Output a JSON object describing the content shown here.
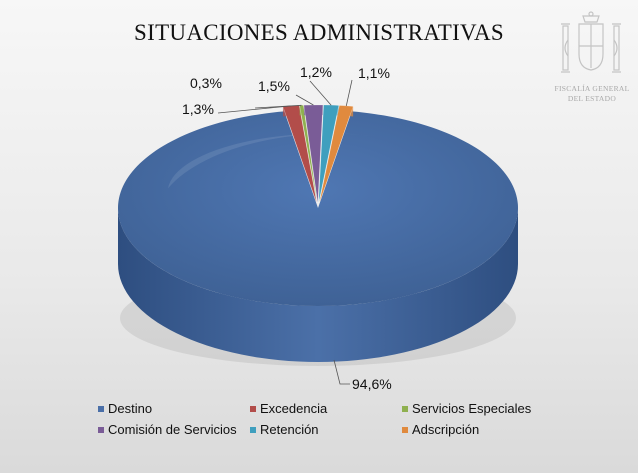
{
  "chart_data": {
    "type": "pie",
    "title": "SITUACIONES ADMINISTRATIVAS",
    "slices": [
      {
        "name": "Destino",
        "value": 94.6,
        "label": "94,6%",
        "color": "#4a6fa8"
      },
      {
        "name": "Excedencia",
        "value": 1.3,
        "label": "1,3%",
        "color": "#b24d4a"
      },
      {
        "name": "Servicios Especiales",
        "value": 0.3,
        "label": "0,3%",
        "color": "#8fb04f"
      },
      {
        "name": "Comisión de Servicios",
        "value": 1.5,
        "label": "1,5%",
        "color": "#7a5c97"
      },
      {
        "name": "Retención",
        "value": 1.2,
        "label": "1,2%",
        "color": "#3f9fbe"
      },
      {
        "name": "Adscripción",
        "value": 1.1,
        "label": "1,1%",
        "color": "#e08a3e"
      }
    ],
    "legend_position": "bottom",
    "style": "3d-exploded"
  },
  "logo": {
    "line1": "FISCALÍA GENERAL",
    "line2": "DEL ESTADO",
    "icon": "coat-of-arms-icon"
  }
}
